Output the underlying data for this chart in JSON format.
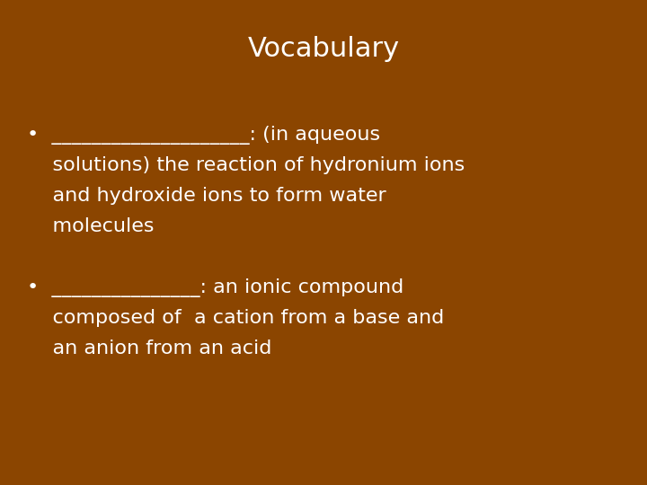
{
  "background_color": "#8B4500",
  "title": "Vocabulary",
  "title_color": "#FFFFFF",
  "title_fontsize": 22,
  "text_color": "#FFFFFF",
  "text_fontsize": 16,
  "font_family": "DejaVu Sans",
  "bullet1": [
    "•  ____________________: (in aqueous",
    "    solutions) the reaction of hydronium ions",
    "    and hydroxide ions to form water",
    "    molecules"
  ],
  "bullet2": [
    "•  _______________: an ionic compound",
    "    composed of  a cation from a base and",
    "    an anion from an acid"
  ]
}
